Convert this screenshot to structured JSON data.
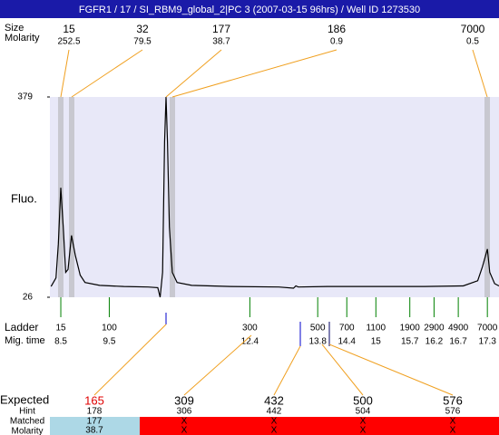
{
  "title": "FGFR1 / 17 / SI_RBM9_global_2|PC 3 (2007-03-15 96hrs) / Well ID 1273530",
  "peaks": {
    "size_label": "Size",
    "molarity_label": "Molarity",
    "sizes": [
      15,
      32,
      177,
      186,
      7000
    ],
    "molarities": [
      252.5,
      79.5,
      38.7,
      0.9,
      0.5
    ]
  },
  "chart_data": {
    "type": "line",
    "ylabel": "Fluo.",
    "ylim": [
      26,
      379
    ],
    "yticks": [
      26,
      379
    ],
    "xlim": [
      8.275,
      17.54
    ],
    "color": "#000000",
    "background": "#e8e8f8",
    "x": [
      8.3,
      8.4,
      8.45,
      8.5,
      8.55,
      8.6,
      8.65,
      8.72,
      8.8,
      8.9,
      9.0,
      9.3,
      9.8,
      10.3,
      10.5,
      10.55,
      10.6,
      10.64,
      10.67,
      10.7,
      10.74,
      10.8,
      10.9,
      11.2,
      12.0,
      13.0,
      13.3,
      13.35,
      13.4,
      14.0,
      15.0,
      16.0,
      16.8,
      17.1,
      17.2,
      17.3,
      17.35,
      17.45,
      17.54
    ],
    "values": [
      45,
      60,
      120,
      219,
      150,
      70,
      75,
      135,
      100,
      65,
      52,
      47,
      45,
      44,
      43,
      26,
      70,
      300,
      379,
      300,
      150,
      70,
      52,
      47,
      45,
      44,
      42,
      46,
      44,
      45,
      45,
      45,
      46,
      55,
      80,
      111,
      70,
      50,
      46
    ]
  },
  "ladder": {
    "label": "Ladder",
    "time_label": "Mig. time",
    "sizes": [
      15,
      100,
      300,
      500,
      700,
      1100,
      1900,
      2900,
      4900,
      7000
    ],
    "times": [
      8.5,
      9.5,
      12.4,
      13.8,
      14.4,
      15,
      15.7,
      16.2,
      16.7,
      17.3
    ]
  },
  "fragments": {
    "labels": [
      "Expected",
      "Hint",
      "Matched",
      "Molarity"
    ],
    "expected": [
      165,
      309,
      432,
      500,
      576
    ],
    "hint": [
      178,
      306,
      442,
      504,
      576
    ],
    "matched": [
      177,
      "X",
      "X",
      "X",
      "X"
    ],
    "molarity": [
      38.7,
      "X",
      "X",
      "X",
      "X"
    ]
  }
}
